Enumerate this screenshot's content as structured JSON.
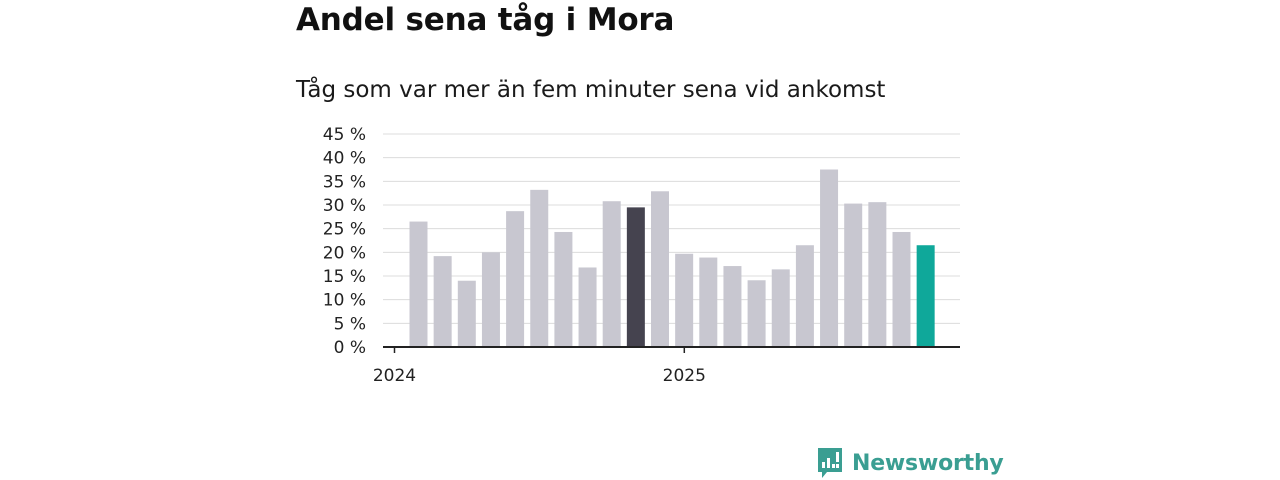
{
  "chart_data": {
    "type": "bar",
    "title": "Andel sena tåg i Mora",
    "subtitle": "Tåg som var mer än fem minuter sena vid ankomst",
    "y_ticks": [
      "0 %",
      "5 %",
      "10 %",
      "15 %",
      "20 %",
      "25 %",
      "30 %",
      "35 %",
      "40 %",
      "45 %"
    ],
    "ylim": [
      0,
      45
    ],
    "x_labels": [
      {
        "label": "2024",
        "index": 0
      },
      {
        "label": "2025",
        "index": 12
      }
    ],
    "values": [
      26.5,
      19.2,
      14.0,
      20.0,
      28.7,
      33.2,
      24.3,
      16.8,
      30.8,
      29.5,
      32.9,
      19.7,
      18.9,
      17.1,
      14.1,
      16.4,
      21.5,
      37.5,
      30.3,
      30.6,
      24.3,
      21.5
    ],
    "highlight": [
      {
        "index": 9,
        "color": "#45434f"
      },
      {
        "index": 21,
        "color": "#0fa89a"
      }
    ],
    "bar_color": "#c8c7d0",
    "grid": true,
    "legend": "none"
  },
  "brand": {
    "name": "Newsworthy",
    "logo_icon": "newsworthy-logo-icon",
    "color": "#3a9e92"
  }
}
